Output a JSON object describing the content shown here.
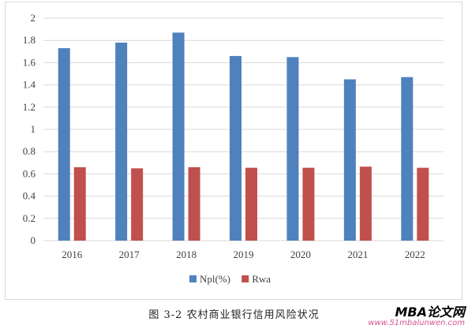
{
  "chart_data": {
    "type": "bar",
    "categories": [
      "2016",
      "2017",
      "2018",
      "2019",
      "2020",
      "2021",
      "2022"
    ],
    "series": [
      {
        "name": "Npl(%)",
        "color": "#4f81bd",
        "values": [
          1.73,
          1.78,
          1.87,
          1.66,
          1.65,
          1.45,
          1.47
        ]
      },
      {
        "name": "Rwa",
        "color": "#c0504d",
        "values": [
          0.66,
          0.65,
          0.66,
          0.655,
          0.655,
          0.665,
          0.655
        ]
      }
    ],
    "ylim": [
      0,
      2
    ],
    "yticks": [
      0,
      0.2,
      0.4,
      0.6,
      0.8,
      1,
      1.2,
      1.4,
      1.6,
      1.8,
      2
    ],
    "ytick_labels": [
      "0",
      "0.2",
      "0.4",
      "0.6",
      "0.8",
      "1",
      "1.2",
      "1.4",
      "1.6",
      "1.8",
      "2"
    ],
    "grid": true,
    "legend_position": "bottom"
  },
  "caption": "图 3-2 农村商业银行信用风险状况",
  "watermark": {
    "brand": "MBA论文网",
    "url": "www.51mbalunwen.com"
  }
}
